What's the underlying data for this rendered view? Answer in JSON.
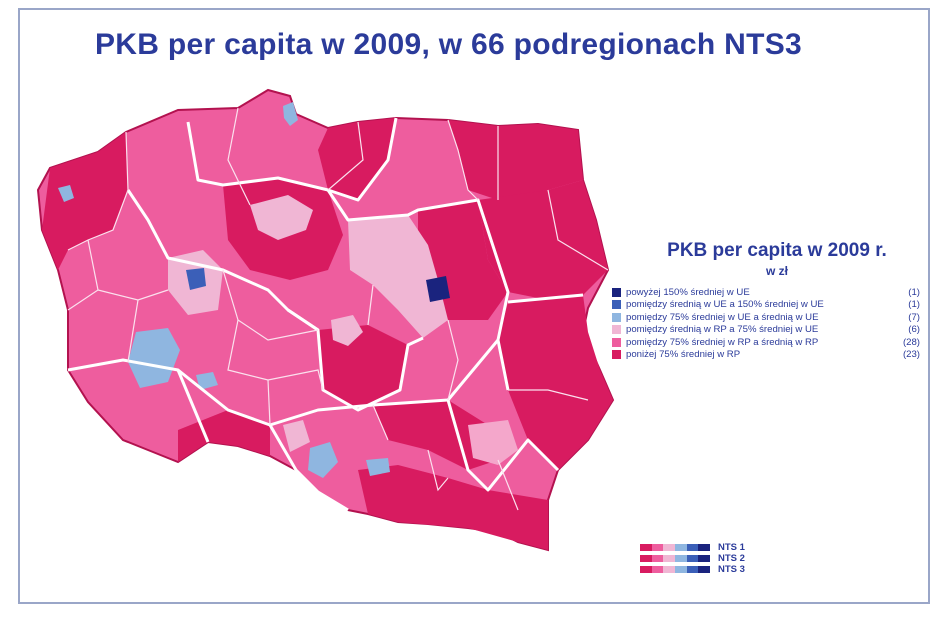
{
  "title": "PKB per capita w 2009, w 66 podregionach NTS3",
  "legend": {
    "title": "PKB per capita w 2009 r.",
    "subtitle": "w zł",
    "items": [
      {
        "label": "powyżej 150% średniej w UE",
        "count": "(1)",
        "color": "#1a237e"
      },
      {
        "label": "pomiędzy średnią w UE a 150% średniej w UE",
        "count": "(1)",
        "color": "#3b5fb8"
      },
      {
        "label": "pomiędzy 75% średniej w UE a średnią w UE",
        "count": "(7)",
        "color": "#8fb6e0"
      },
      {
        "label": "pomiędzy średnią w RP a 75% średniej w UE",
        "count": "(6)",
        "color": "#f0b6d4"
      },
      {
        "label": "pomiędzy 75% średniej w RP a średnią w RP",
        "count": "(28)",
        "color": "#ee5d9e"
      },
      {
        "label": "poniżej 75% średniej w RP",
        "count": "(23)",
        "color": "#d81b60"
      }
    ]
  },
  "nts_levels": [
    {
      "label": "NTS 1"
    },
    {
      "label": "NTS 2"
    },
    {
      "label": "NTS 3"
    }
  ],
  "colors": {
    "title": "#2b3b9a",
    "frame": "#9aa6c8",
    "border_nts1": "#ffffff",
    "border_nts3": "#fbe1ee",
    "outline": "#b3124f"
  }
}
